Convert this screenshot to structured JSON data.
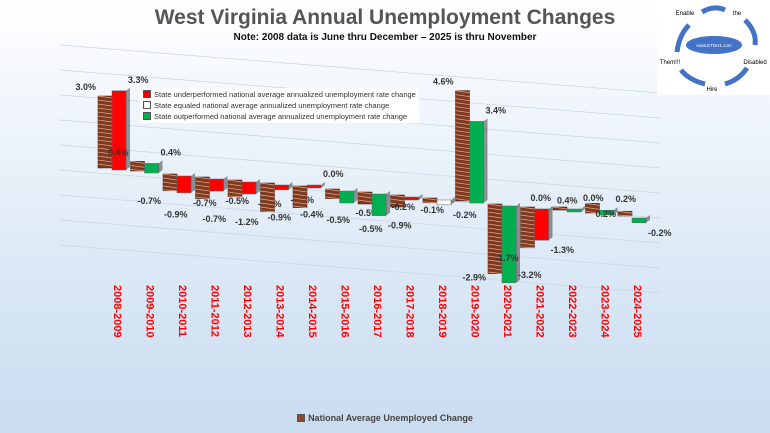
{
  "chart_data": {
    "type": "bar",
    "title": "West Virginia Annual Unemployment Changes",
    "subtitle": "Note: 2008 data is June thru December – 2025 is thru November",
    "categories": [
      "2008-2009",
      "2009-2010",
      "2010-2011",
      "2011-2012",
      "2012-2013",
      "2013-2014",
      "2014-2015",
      "2015-2016",
      "2016-2017",
      "2017-2018",
      "2018-2019",
      "2019-2020",
      "2020-2021",
      "2021-2022",
      "2022-2023",
      "2023-2024",
      "2024-2025"
    ],
    "series": [
      {
        "name": "National  Average Unemployed Change",
        "values": [
          3.0,
          0.4,
          -0.7,
          -0.9,
          -0.7,
          -1.2,
          -0.9,
          -0.4,
          -0.5,
          -0.5,
          -0.2,
          4.6,
          -2.9,
          -1.7,
          0.0,
          0.4,
          0.2
        ]
      },
      {
        "name": "State",
        "values": [
          3.3,
          0.4,
          -0.7,
          -0.5,
          -0.5,
          -0.2,
          0.0,
          -0.5,
          -0.9,
          -0.1,
          -0.2,
          3.4,
          -3.2,
          -1.3,
          0.0,
          0.2,
          -0.2
        ],
        "performance": [
          "under",
          "out",
          "under",
          "under",
          "under",
          "under",
          "under",
          "out",
          "out",
          "under",
          "equal",
          "out",
          "out",
          "under",
          "out",
          "out",
          "out"
        ]
      }
    ],
    "legend": [
      {
        "key": "under",
        "label": "State underperformed national average annualized unemployment rate change",
        "color": "#ff0000"
      },
      {
        "key": "equal",
        "label": "State equaled national average annualized unemployment rate change",
        "color": "#ffffff"
      },
      {
        "key": "out",
        "label": "State outperformed national average annualized unemployment rate change",
        "color": "#00b050"
      }
    ],
    "category_label_color": "#ff0000"
  },
  "logo": {
    "words": [
      "Enable",
      "the",
      "Disabled",
      "Hire",
      "Them!!!"
    ],
    "center": "www.ETDH1.com"
  }
}
